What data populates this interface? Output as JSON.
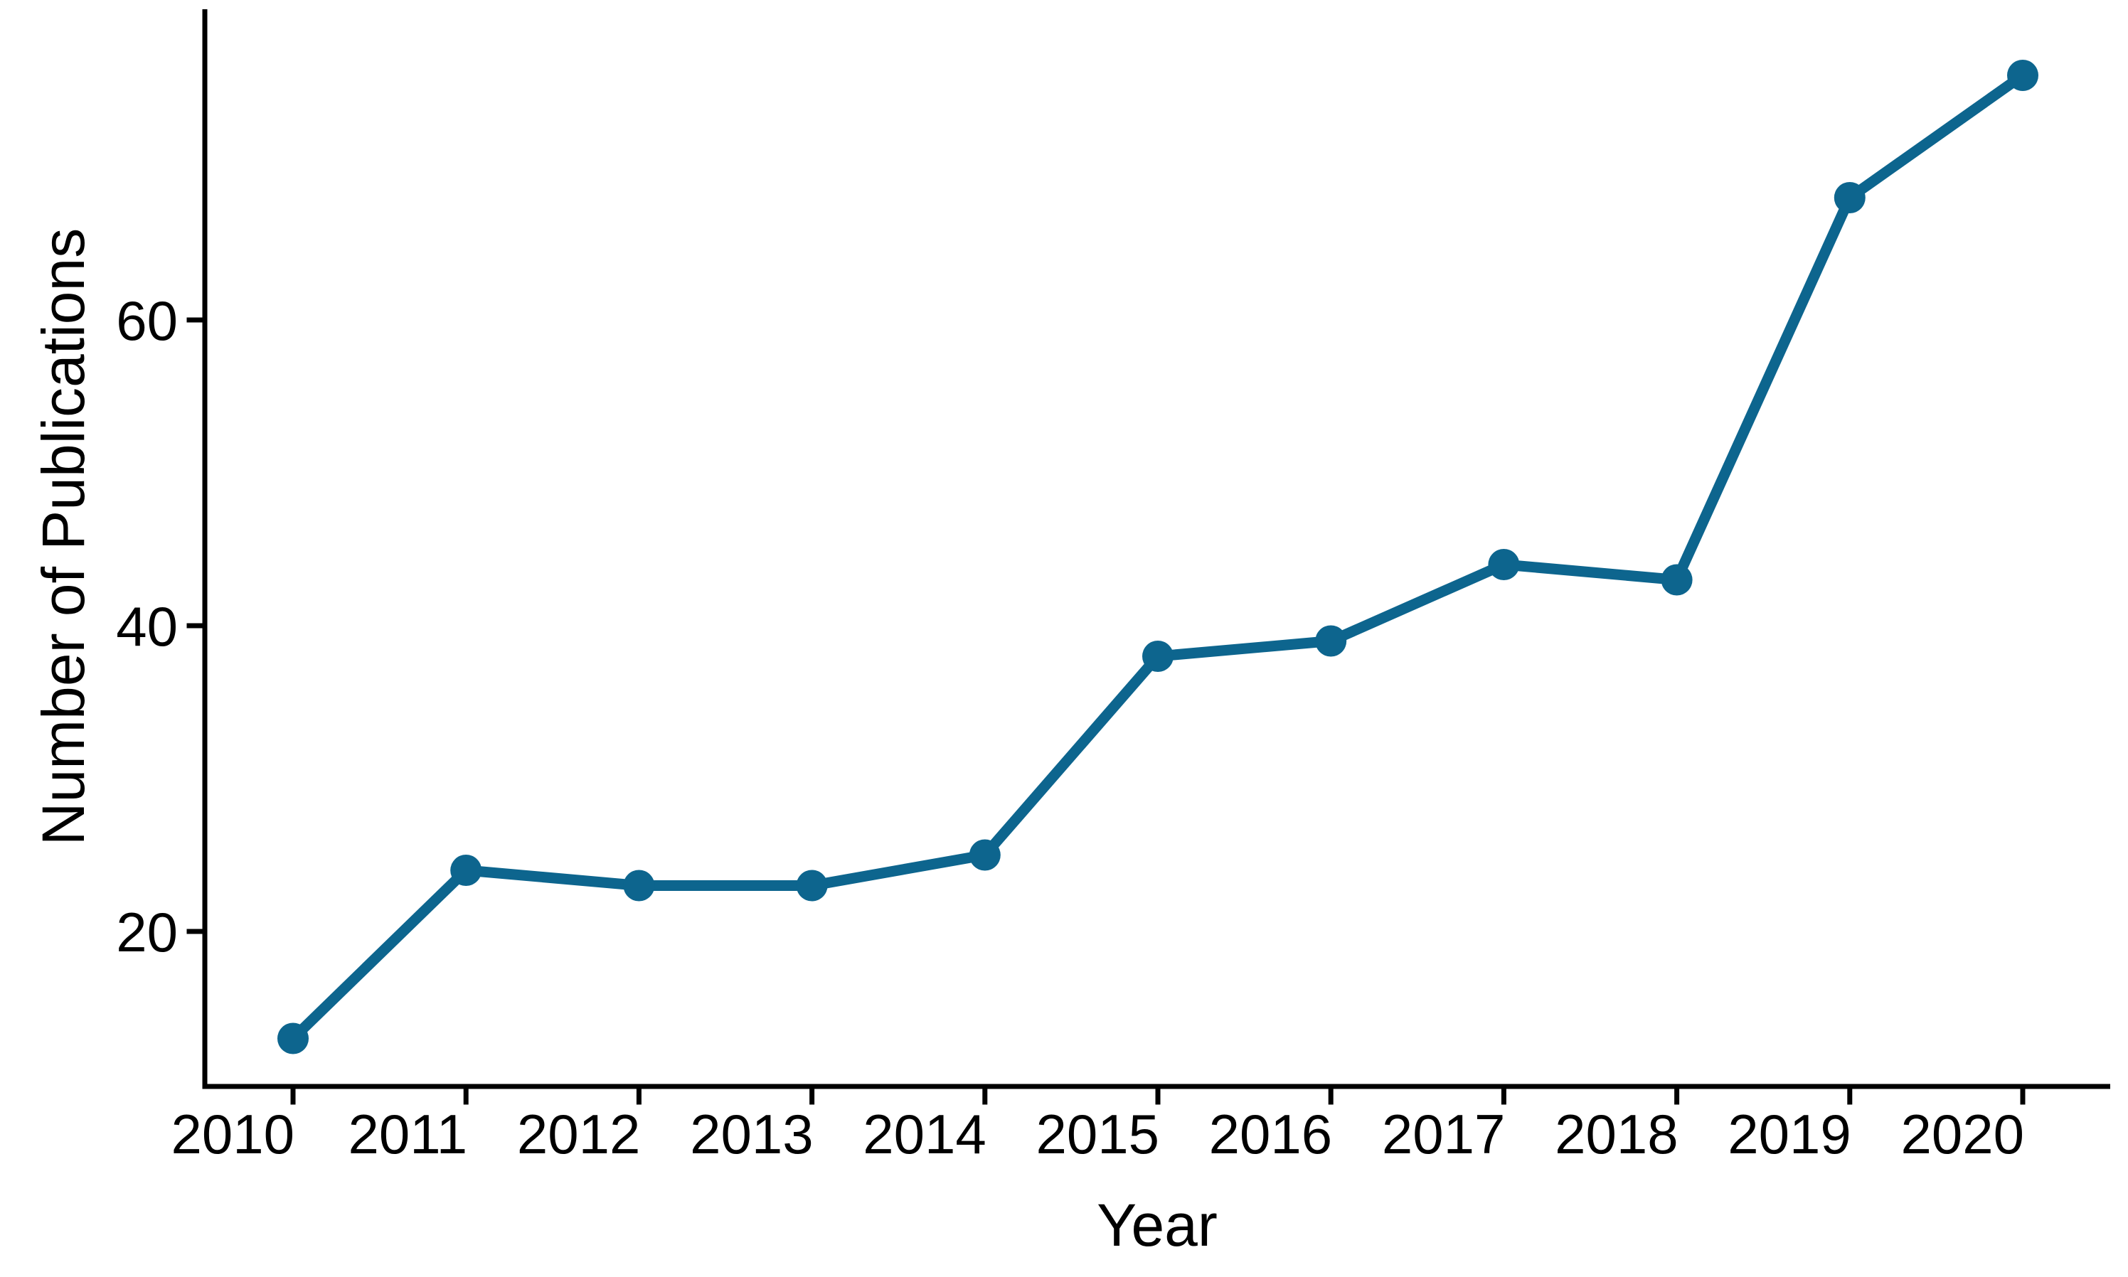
{
  "chart_data": {
    "type": "line",
    "title": "",
    "xlabel": "Year",
    "ylabel": "Number of Publications",
    "x": [
      2010,
      2011,
      2012,
      2013,
      2014,
      2015,
      2016,
      2017,
      2018,
      2019,
      2020
    ],
    "series": [
      {
        "name": "Number of Publications",
        "values": [
          13,
          24,
          23,
          23,
          25,
          38,
          39,
          44,
          43,
          68,
          76
        ]
      }
    ],
    "xticks": [
      "2010",
      "2011",
      "2012",
      "2013",
      "2014",
      "2015",
      "2016",
      "2017",
      "2018",
      "2019",
      "2020"
    ],
    "yticks": [
      "20",
      "40",
      "60"
    ],
    "ytick_values": [
      20,
      40,
      60
    ],
    "xlim": [
      2009.5,
      2020.5
    ],
    "ylim": [
      9.9,
      80.3
    ],
    "grid": "off",
    "legend": "none",
    "line_color": "#0D658E",
    "marker_color": "#0D658E",
    "axis_color": "#000000",
    "background_color": "#FFFFFF"
  }
}
